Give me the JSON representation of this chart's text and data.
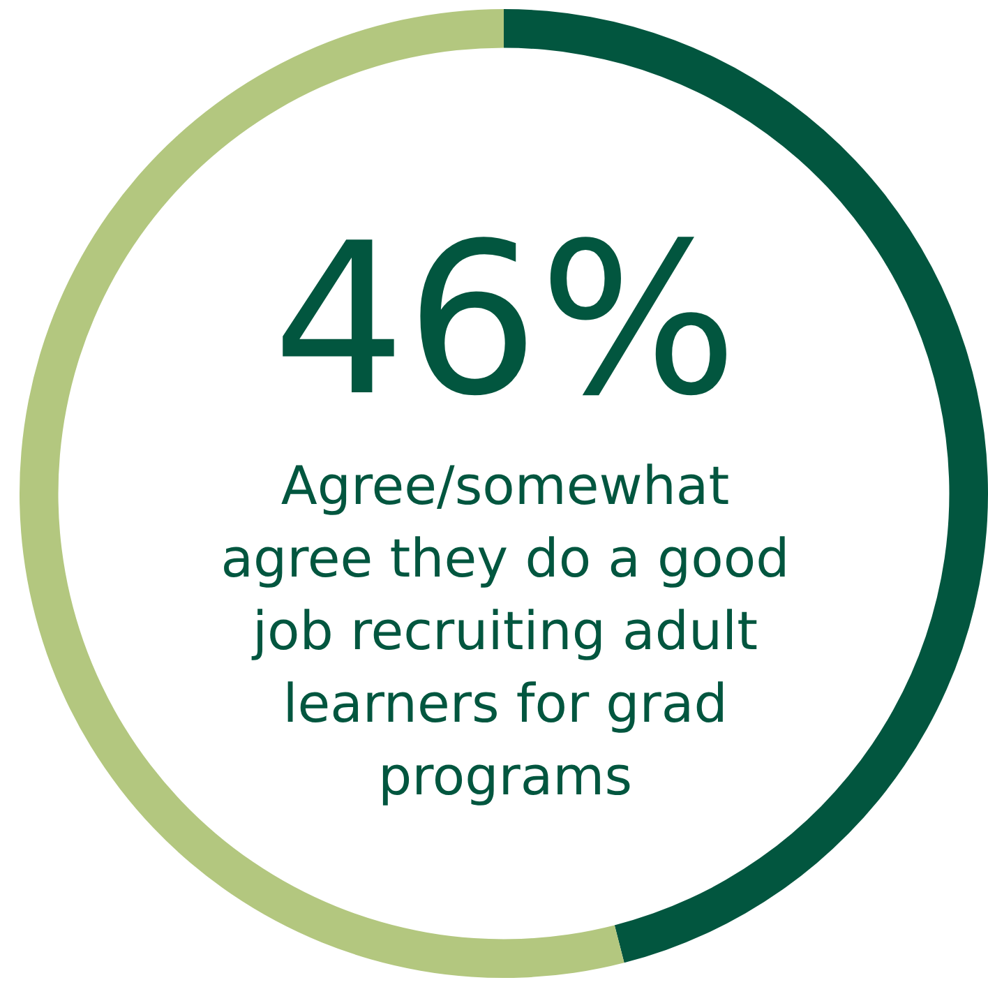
{
  "chart_data": {
    "type": "donut",
    "categories": [
      null,
      null
    ],
    "values": [
      46,
      54
    ],
    "colors": [
      "#02563f",
      "#b3c77f"
    ],
    "annotations": [
      "46%",
      "Agree/somewhat agree they do a good job recruiting adult learners for grad programs"
    ],
    "legend": false
  }
}
